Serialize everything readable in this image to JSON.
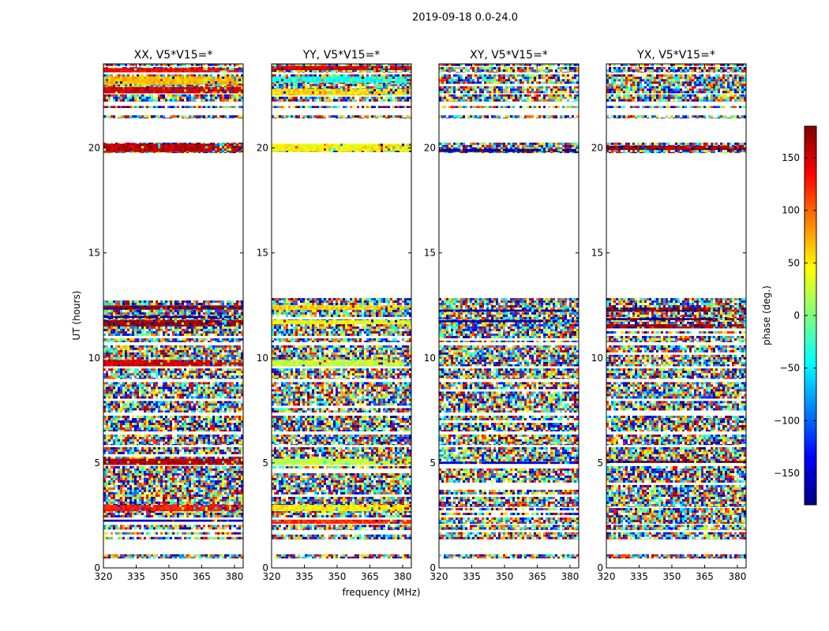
{
  "suptitle": "2019-09-18 0.0-24.0",
  "chart_data": {
    "type": "heatmap",
    "xlabel": "frequency (MHz)",
    "ylabel": "UT (hours)",
    "xlim": [
      320,
      384
    ],
    "ylim": [
      0,
      24
    ],
    "xticks": [
      320,
      335,
      350,
      365,
      380
    ],
    "yticks": [
      0,
      5,
      10,
      15,
      20
    ],
    "colorbar": {
      "label": "phase (deg.)",
      "range": [
        -180,
        180
      ],
      "ticks": [
        150,
        100,
        50,
        0,
        -50,
        -100,
        -150
      ],
      "tick_labels": [
        "150",
        "100",
        "50",
        "0",
        "−50",
        "−100",
        "−150"
      ],
      "colormap": "jet",
      "colors": [
        "#00007f",
        "#0000ff",
        "#007fff",
        "#00ffff",
        "#7fff7f",
        "#ffff00",
        "#ff7f00",
        "#ff0000",
        "#7f0000"
      ]
    },
    "panels": [
      {
        "title": "XX, V5*V15=*",
        "coherent_bands": [
          {
            "t": [
              22.6,
              22.9
            ],
            "phase": 150
          },
          {
            "t": [
              23.0,
              23.4
            ],
            "phase": 70
          },
          {
            "t": [
              23.6,
              23.8
            ],
            "phase": 140
          },
          {
            "t": [
              19.8,
              20.2
            ],
            "phase": 160
          },
          {
            "t": [
              12.3,
              12.5
            ],
            "phase": 175
          },
          {
            "t": [
              11.9,
              12.0
            ],
            "phase": -170
          },
          {
            "t": [
              11.5,
              11.8
            ],
            "phase": 170
          },
          {
            "t": [
              9.6,
              9.9
            ],
            "phase": 150
          },
          {
            "t": [
              4.9,
              5.2
            ],
            "phase": 160
          },
          {
            "t": [
              2.7,
              3.0
            ],
            "phase": 130
          },
          {
            "t": [
              2.2,
              2.3
            ],
            "phase": -160
          }
        ]
      },
      {
        "title": "YY, V5*V15=*",
        "coherent_bands": [
          {
            "t": [
              23.1,
              23.4
            ],
            "phase": -40
          },
          {
            "t": [
              23.7,
              23.9
            ],
            "phase": 150
          },
          {
            "t": [
              22.5,
              22.8
            ],
            "phase": 60
          },
          {
            "t": [
              19.8,
              20.2
            ],
            "phase": 45
          },
          {
            "t": [
              12.3,
              12.5
            ],
            "phase": 60
          },
          {
            "t": [
              11.6,
              11.8
            ],
            "phase": 40
          },
          {
            "t": [
              9.6,
              9.9
            ],
            "phase": 25
          },
          {
            "t": [
              4.9,
              5.2
            ],
            "phase": 20
          },
          {
            "t": [
              2.7,
              3.0
            ],
            "phase": 50
          },
          {
            "t": [
              2.1,
              2.3
            ],
            "phase": 120
          }
        ]
      },
      {
        "title": "XY, V5*V15=*",
        "coherent_bands": [
          {
            "t": [
              19.8,
              19.95
            ],
            "phase": -170
          },
          {
            "t": [
              12.2,
              12.3
            ],
            "phase": -160
          },
          {
            "t": [
              11.7,
              11.8
            ],
            "phase": -165
          },
          {
            "t": [
              4.95,
              5.05
            ],
            "phase": -150
          }
        ]
      },
      {
        "title": "YX, V5*V15=*",
        "coherent_bands": [
          {
            "t": [
              19.9,
              20.1
            ],
            "phase": 170
          },
          {
            "t": [
              12.2,
              12.4
            ],
            "phase": 175
          },
          {
            "t": [
              11.8,
              11.9
            ],
            "phase": -175
          },
          {
            "t": [
              11.4,
              11.6
            ],
            "phase": 170
          },
          {
            "t": [
              5.0,
              5.1
            ],
            "phase": 175
          }
        ]
      }
    ],
    "data_rows_ut": [
      [
        0.45,
        0.65
      ],
      [
        1.35,
        1.7
      ],
      [
        1.8,
        2.05
      ],
      [
        2.1,
        2.85
      ],
      [
        2.9,
        4.85
      ],
      [
        5.0,
        5.75
      ],
      [
        5.85,
        6.35
      ],
      [
        6.5,
        7.25
      ],
      [
        7.4,
        8.85
      ],
      [
        9.0,
        9.5
      ],
      [
        9.6,
        10.6
      ],
      [
        10.75,
        12.85
      ],
      [
        19.75,
        20.25
      ],
      [
        21.4,
        21.55
      ],
      [
        21.9,
        22.0
      ],
      [
        22.2,
        22.55
      ],
      [
        22.6,
        23.5
      ],
      [
        23.6,
        23.85
      ],
      [
        23.9,
        24.0
      ]
    ]
  }
}
